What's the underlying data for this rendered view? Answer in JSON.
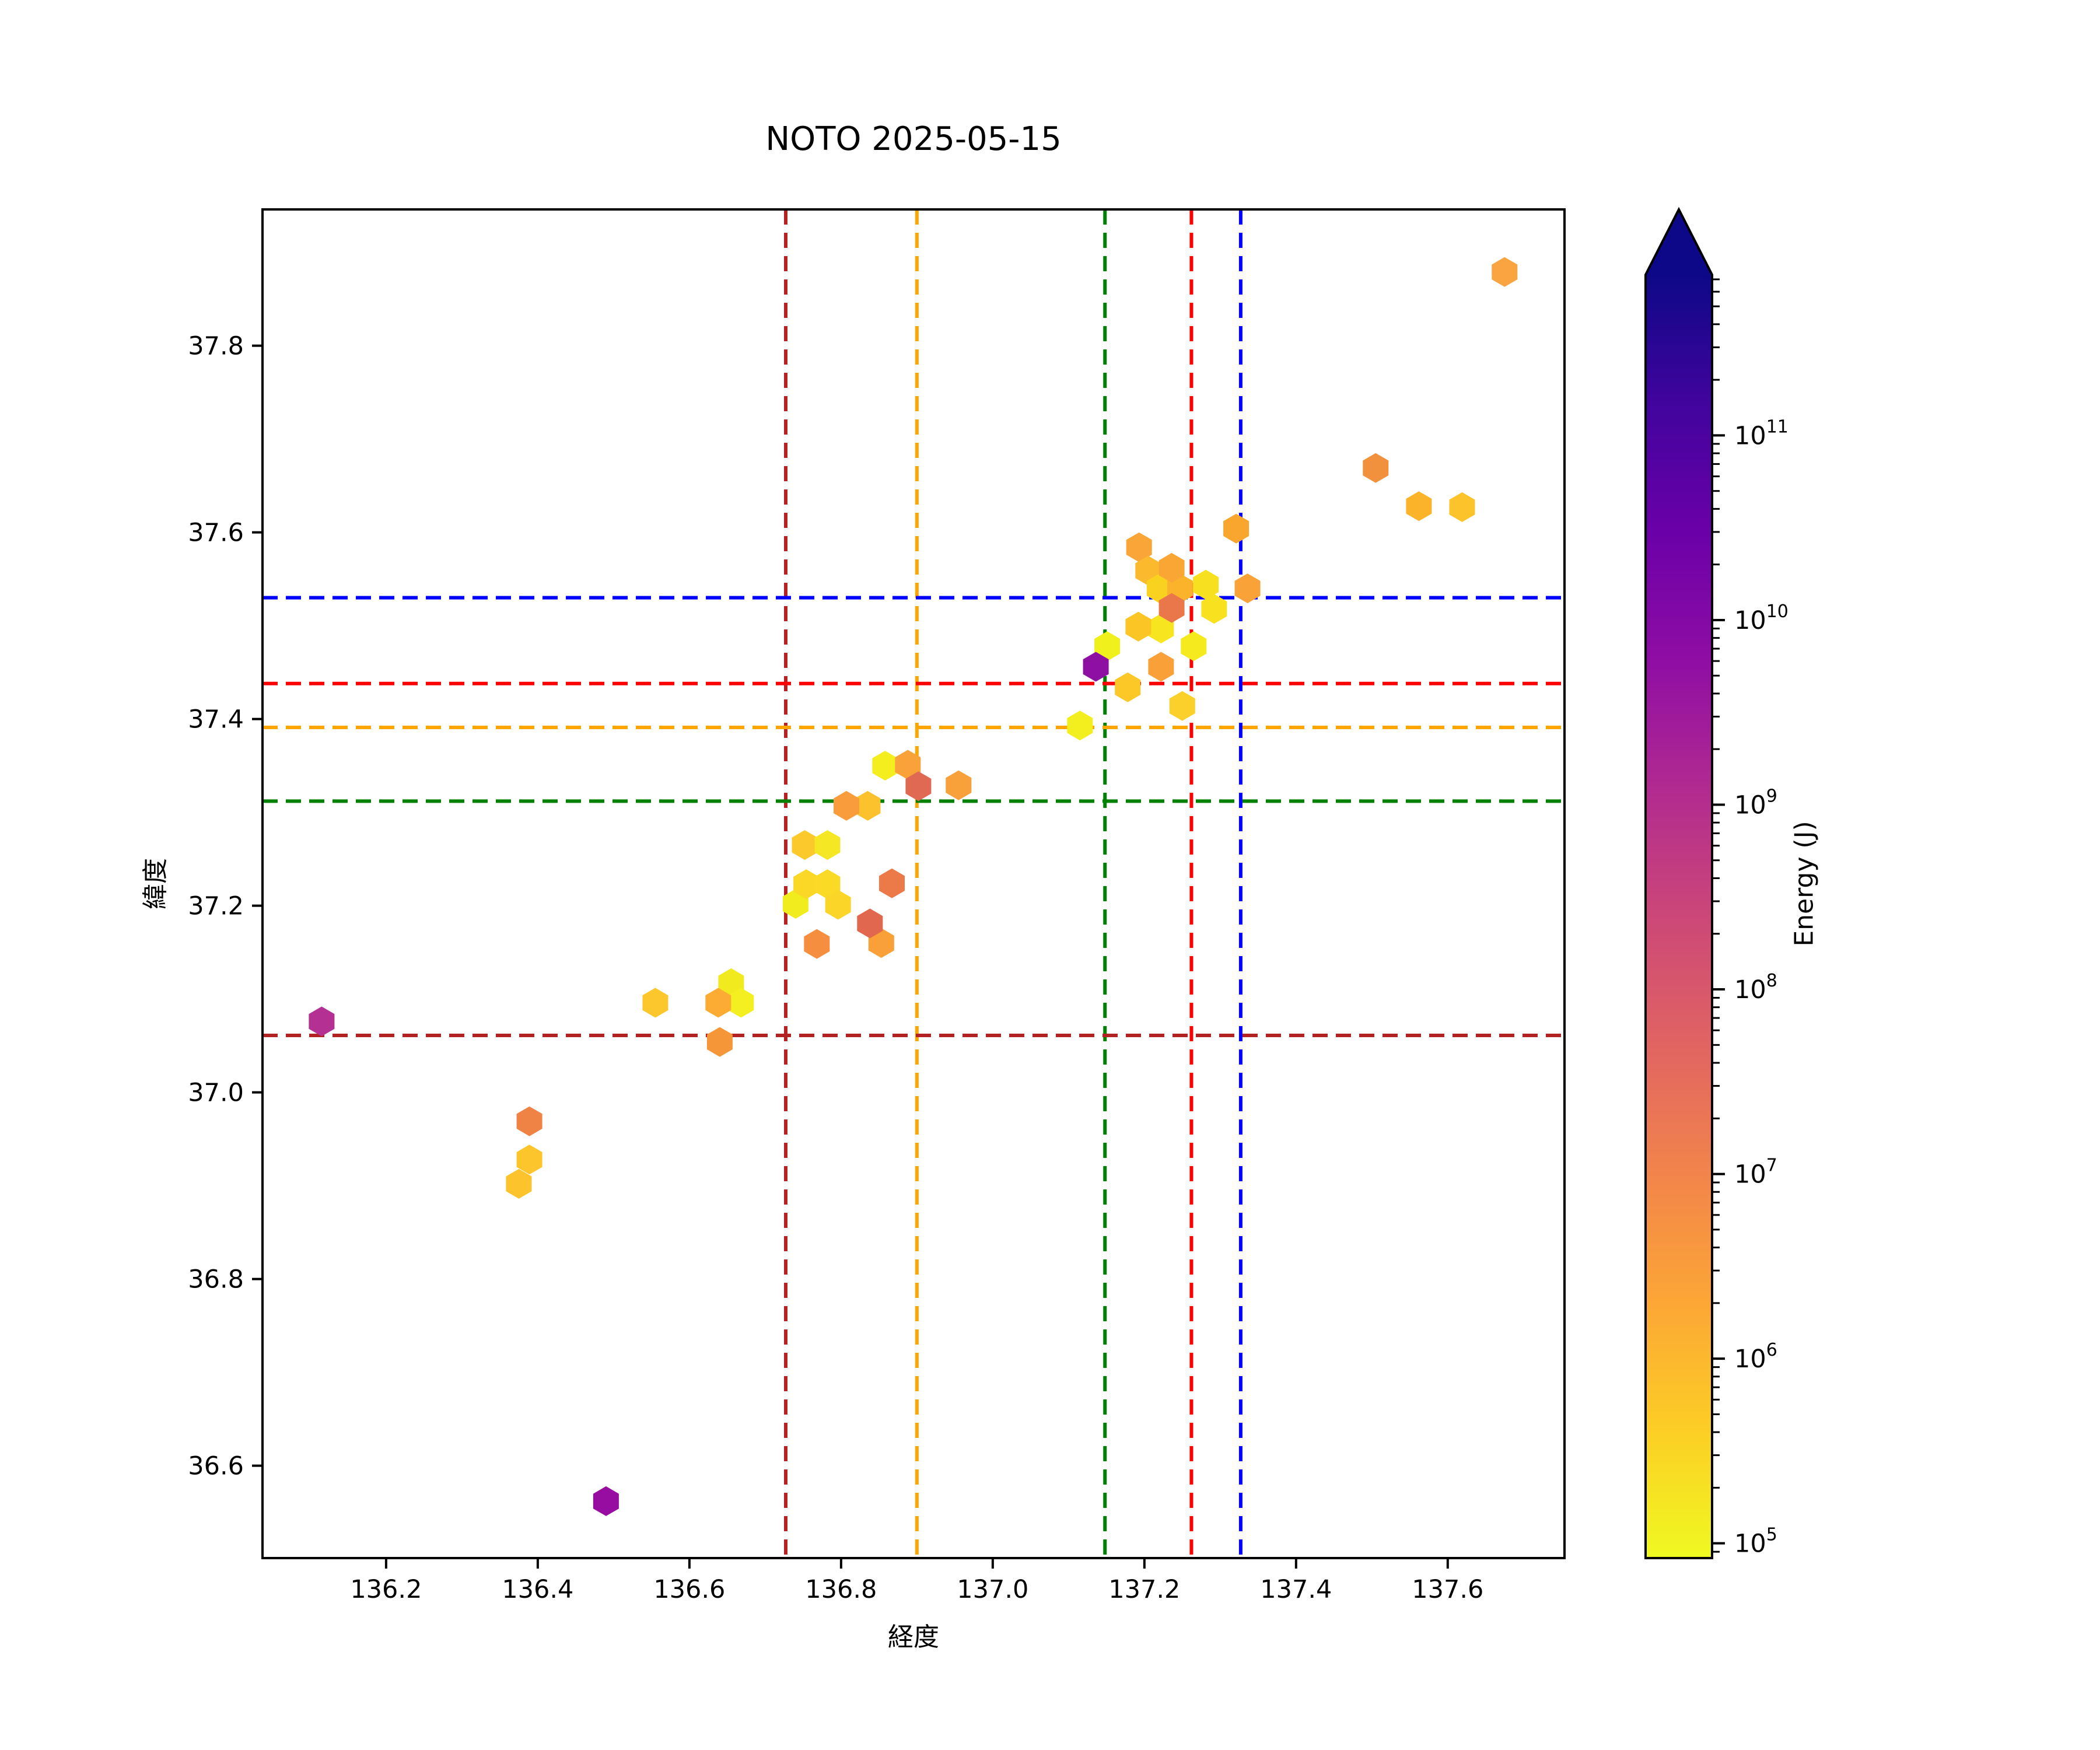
{
  "chart_data": {
    "type": "scatter",
    "marker": "hexagon",
    "title": "NOTO 2025-05-15",
    "xlabel": "経度",
    "ylabel": "緯度",
    "xlim": [
      136.037,
      137.754
    ],
    "ylim": [
      36.501,
      37.946
    ],
    "grid": false,
    "text_color": "#000000",
    "xticks": [
      {
        "v": 136.2,
        "label": "136.2"
      },
      {
        "v": 136.4,
        "label": "136.4"
      },
      {
        "v": 136.6,
        "label": "136.6"
      },
      {
        "v": 136.8,
        "label": "136.8"
      },
      {
        "v": 137.0,
        "label": "137.0"
      },
      {
        "v": 137.2,
        "label": "137.2"
      },
      {
        "v": 137.4,
        "label": "137.4"
      },
      {
        "v": 137.6,
        "label": "137.6"
      }
    ],
    "yticks": [
      {
        "v": 36.6,
        "label": "36.6"
      },
      {
        "v": 36.8,
        "label": "36.8"
      },
      {
        "v": 37.0,
        "label": "37.0"
      },
      {
        "v": 37.2,
        "label": "37.2"
      },
      {
        "v": 37.4,
        "label": "37.4"
      },
      {
        "v": 37.6,
        "label": "37.6"
      },
      {
        "v": 37.8,
        "label": "37.8"
      }
    ],
    "vlines": [
      {
        "x": 136.727,
        "color": "#b22222",
        "name": "darkred"
      },
      {
        "x": 136.9,
        "color": "#ffa500",
        "name": "orange"
      },
      {
        "x": 137.148,
        "color": "#008000",
        "name": "green"
      },
      {
        "x": 137.262,
        "color": "#ff0000",
        "name": "red"
      },
      {
        "x": 137.327,
        "color": "#0000ff",
        "name": "blue"
      }
    ],
    "hlines": [
      {
        "y": 37.53,
        "color": "#0000ff",
        "name": "blue"
      },
      {
        "y": 37.438,
        "color": "#ff0000",
        "name": "red"
      },
      {
        "y": 37.391,
        "color": "#ffa500",
        "name": "orange"
      },
      {
        "y": 37.312,
        "color": "#008000",
        "name": "green"
      },
      {
        "y": 37.061,
        "color": "#b22222",
        "name": "darkred"
      }
    ],
    "points": [
      {
        "lon": 136.115,
        "lat": 37.076,
        "color": "#b43092"
      },
      {
        "lon": 136.49,
        "lat": 36.562,
        "color": "#970da1"
      },
      {
        "lon": 136.389,
        "lat": 36.969,
        "color": "#ef8345"
      },
      {
        "lon": 136.389,
        "lat": 36.928,
        "color": "#fcc52b"
      },
      {
        "lon": 136.375,
        "lat": 36.902,
        "color": "#fcc32d"
      },
      {
        "lon": 136.555,
        "lat": 37.096,
        "color": "#fcc72c"
      },
      {
        "lon": 136.655,
        "lat": 37.117,
        "color": "#f0ea1e"
      },
      {
        "lon": 136.668,
        "lat": 37.096,
        "color": "#f4ef20"
      },
      {
        "lon": 136.638,
        "lat": 37.096,
        "color": "#fcab33"
      },
      {
        "lon": 136.64,
        "lat": 37.054,
        "color": "#f59738"
      },
      {
        "lon": 136.74,
        "lat": 37.202,
        "color": "#f1ec1e"
      },
      {
        "lon": 136.752,
        "lat": 37.265,
        "color": "#fbc92b"
      },
      {
        "lon": 136.782,
        "lat": 37.265,
        "color": "#f5e723"
      },
      {
        "lon": 136.754,
        "lat": 37.223,
        "color": "#fcd826"
      },
      {
        "lon": 136.782,
        "lat": 37.223,
        "color": "#fbda25"
      },
      {
        "lon": 136.796,
        "lat": 37.201,
        "color": "#fbd629"
      },
      {
        "lon": 136.835,
        "lat": 37.307,
        "color": "#fcc22e"
      },
      {
        "lon": 136.807,
        "lat": 37.307,
        "color": "#f89c3c"
      },
      {
        "lon": 136.867,
        "lat": 37.224,
        "color": "#ec7a49"
      },
      {
        "lon": 136.853,
        "lat": 37.16,
        "color": "#f9a138"
      },
      {
        "lon": 136.838,
        "lat": 37.181,
        "color": "#e1674f"
      },
      {
        "lon": 136.768,
        "lat": 37.159,
        "color": "#f58e3e"
      },
      {
        "lon": 136.858,
        "lat": 37.35,
        "color": "#f5ee1f"
      },
      {
        "lon": 136.888,
        "lat": 37.351,
        "color": "#f9a239"
      },
      {
        "lon": 136.902,
        "lat": 37.328,
        "color": "#df6952"
      },
      {
        "lon": 136.955,
        "lat": 37.329,
        "color": "#f8a03a"
      },
      {
        "lon": 137.115,
        "lat": 37.393,
        "color": "#f3ef1e"
      },
      {
        "lon": 137.193,
        "lat": 37.584,
        "color": "#f9a537"
      },
      {
        "lon": 137.321,
        "lat": 37.604,
        "color": "#f9a62f"
      },
      {
        "lon": 137.205,
        "lat": 37.559,
        "color": "#fbb92e"
      },
      {
        "lon": 137.22,
        "lat": 37.54,
        "color": "#f8d21f"
      },
      {
        "lon": 137.247,
        "lat": 37.54,
        "color": "#fbb32b"
      },
      {
        "lon": 137.236,
        "lat": 37.562,
        "color": "#faa634"
      },
      {
        "lon": 137.281,
        "lat": 37.544,
        "color": "#f6e020"
      },
      {
        "lon": 137.292,
        "lat": 37.518,
        "color": "#f8e11e"
      },
      {
        "lon": 137.336,
        "lat": 37.54,
        "color": "#f8a238"
      },
      {
        "lon": 137.151,
        "lat": 37.478,
        "color": "#f0f01c"
      },
      {
        "lon": 137.222,
        "lat": 37.497,
        "color": "#f7e51f"
      },
      {
        "lon": 137.192,
        "lat": 37.499,
        "color": "#fbc526"
      },
      {
        "lon": 137.265,
        "lat": 37.478,
        "color": "#f5ea1e"
      },
      {
        "lon": 137.236,
        "lat": 37.519,
        "color": "#e9774a"
      },
      {
        "lon": 137.136,
        "lat": 37.456,
        "color": "#8e10a2"
      },
      {
        "lon": 137.222,
        "lat": 37.456,
        "color": "#f9a038"
      },
      {
        "lon": 137.178,
        "lat": 37.434,
        "color": "#fcc827"
      },
      {
        "lon": 137.25,
        "lat": 37.414,
        "color": "#fcd02a"
      },
      {
        "lon": 137.505,
        "lat": 37.669,
        "color": "#f2913d"
      },
      {
        "lon": 137.562,
        "lat": 37.628,
        "color": "#fbb32a"
      },
      {
        "lon": 137.619,
        "lat": 37.627,
        "color": "#fcc32a"
      },
      {
        "lon": 137.675,
        "lat": 37.879,
        "color": "#f9a441"
      }
    ],
    "colorbar": {
      "label": "Energy (J)",
      "scale": "log",
      "extend": "max",
      "colormap": "plasma_r",
      "tick_exponents": [
        5,
        6,
        7,
        8,
        9,
        10,
        11
      ],
      "range_exponents": [
        4.92,
        11.87
      ],
      "gradient_top_to_bottom": [
        "#0d0887",
        "#41049d",
        "#6a00a8",
        "#8f0da4",
        "#b12a90",
        "#cc4778",
        "#e16462",
        "#f2844b",
        "#fca636",
        "#fcce25",
        "#f0f921"
      ]
    }
  }
}
